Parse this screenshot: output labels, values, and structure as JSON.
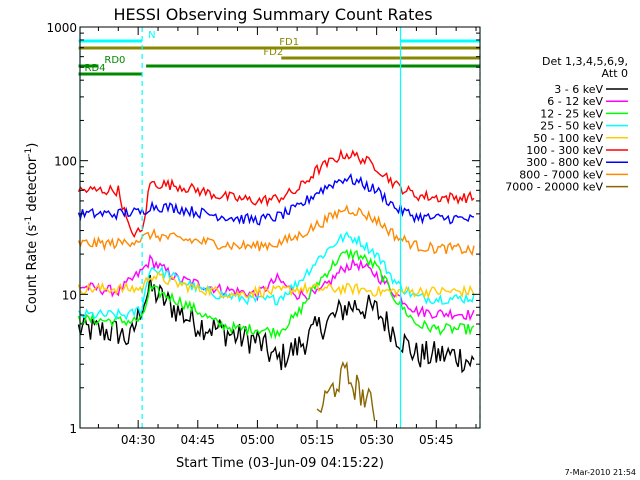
{
  "chart_data": {
    "type": "line",
    "title": "HESSI Observing Summary Count Rates",
    "xlabel": "Start Time (03-Jun-09 04:15:22)",
    "ylabel": "Count Rate (s⁻¹ detector⁻¹)",
    "ylabel_main": "Count Rate (s",
    "ylabel_sup1": "-1",
    "ylabel_mid": " detector",
    "ylabel_sup2": "-1",
    "ylabel_end": ")",
    "yscale": "log",
    "ylim": [
      1,
      1000
    ],
    "xlim": [
      "04:15:22",
      "05:56:00"
    ],
    "x_ticks": [
      "04:30",
      "04:45",
      "05:00",
      "05:15",
      "05:30",
      "05:45"
    ],
    "y_ticks": [
      "1",
      "10",
      "100",
      "1000"
    ],
    "grid": false,
    "legend_position": "right",
    "legend_header": [
      "Det 1,3,4,5,6,9,",
      "Att 0"
    ],
    "timestamp": "7-Mar-2010 21:54",
    "x": [
      "04:15",
      "04:25",
      "04:28",
      "04:31",
      "04:33",
      "04:40",
      "04:45",
      "04:50",
      "04:55",
      "05:00",
      "05:05",
      "05:10",
      "05:15",
      "05:20",
      "05:22",
      "05:25",
      "05:30",
      "05:35",
      "05:40",
      "05:45",
      "05:50",
      "05:55"
    ],
    "series": [
      {
        "name": "3 - 6 keV",
        "color": "#000000",
        "values": [
          5.5,
          5.2,
          4.5,
          8.5,
          11,
          7.5,
          6,
          5.5,
          4.8,
          4.5,
          3.2,
          4,
          5.5,
          7,
          8,
          8.3,
          7.5,
          5,
          3.5,
          3.5,
          3.5,
          3
        ]
      },
      {
        "name": "6 - 12 keV",
        "color": "#ff00ff",
        "values": [
          11.5,
          10.5,
          12.5,
          15,
          18,
          13,
          12,
          11,
          10.5,
          10,
          13,
          10,
          10,
          14,
          16,
          17,
          14,
          10,
          7.5,
          7.2,
          7.2,
          7
        ]
      },
      {
        "name": "12 - 25 keV",
        "color": "#00ff00",
        "values": [
          6.5,
          6.3,
          6.3,
          6.5,
          11,
          9,
          7.5,
          6,
          5.5,
          5.5,
          5.2,
          7,
          12,
          18,
          20,
          20,
          16,
          9,
          6,
          5.5,
          5.5,
          5.5
        ]
      },
      {
        "name": "25 - 50 keV",
        "color": "#00ffff",
        "values": [
          7,
          7,
          7,
          8,
          16,
          13,
          11,
          10,
          9.5,
          9,
          9.2,
          12,
          18,
          25,
          27,
          26,
          20,
          12,
          9.5,
          9.3,
          9.3,
          9.5
        ]
      },
      {
        "name": "50 - 100 keV",
        "color": "#ffcc00",
        "values": [
          11,
          11,
          11,
          11,
          14,
          12,
          11,
          10.5,
          10,
          10.5,
          10.5,
          11,
          11,
          11,
          11,
          11,
          10.5,
          10.5,
          10.5,
          10.5,
          10.5,
          10.5
        ]
      },
      {
        "name": "100 - 300 keV",
        "color": "#ff0000",
        "values": [
          60,
          60,
          29,
          29,
          68,
          65,
          60,
          55,
          52,
          50,
          52,
          60,
          85,
          105,
          112,
          108,
          90,
          65,
          55,
          53,
          53,
          53
        ]
      },
      {
        "name": "300 - 800 keV",
        "color": "#0000ff",
        "values": [
          40,
          40,
          41,
          41,
          46,
          44,
          41,
          39,
          37,
          36,
          38,
          44,
          58,
          70,
          74,
          70,
          60,
          44,
          38,
          37,
          37,
          36
        ]
      },
      {
        "name": "800 - 7000 keV",
        "color": "#ff8800",
        "values": [
          24,
          24,
          25,
          26,
          28,
          26,
          25,
          24,
          23,
          23,
          24,
          27,
          33,
          40,
          44,
          42,
          36,
          27,
          23,
          22,
          22,
          21
        ]
      },
      {
        "name": "7000 - 20000 keV",
        "color": "#886600",
        "values": [
          null,
          null,
          null,
          null,
          null,
          null,
          null,
          null,
          null,
          null,
          null,
          null,
          1.3,
          2.2,
          2.5,
          2.0,
          1.3,
          null,
          null,
          null,
          null,
          null
        ]
      }
    ],
    "flag_bars": [
      {
        "label": "N",
        "color": "#00ffff",
        "segments": [
          [
            "04:15",
            "04:31"
          ],
          [
            "05:36",
            "05:56"
          ]
        ],
        "label_at": "04:32"
      },
      {
        "label": "FD1",
        "color": "#888800",
        "segments": [
          [
            "04:15",
            "05:56"
          ]
        ],
        "label_at": "05:05"
      },
      {
        "label": "FD2",
        "color": "#888800",
        "segments": [
          [
            "05:06",
            "05:56"
          ]
        ],
        "label_at": "05:01"
      },
      {
        "label": "RD0",
        "color": "#008800",
        "segments": [
          [
            "04:15",
            "04:20"
          ],
          [
            "04:32",
            "05:56"
          ]
        ],
        "label_at": "04:21"
      },
      {
        "label": "RD4",
        "color": "#008800",
        "segments": [
          [
            "04:15",
            "04:31"
          ]
        ],
        "label_at": "04:16"
      }
    ],
    "vlines_solid": [
      "04:15:22",
      "05:36"
    ],
    "vlines_dashed": [
      "04:31",
      "05:56"
    ]
  }
}
